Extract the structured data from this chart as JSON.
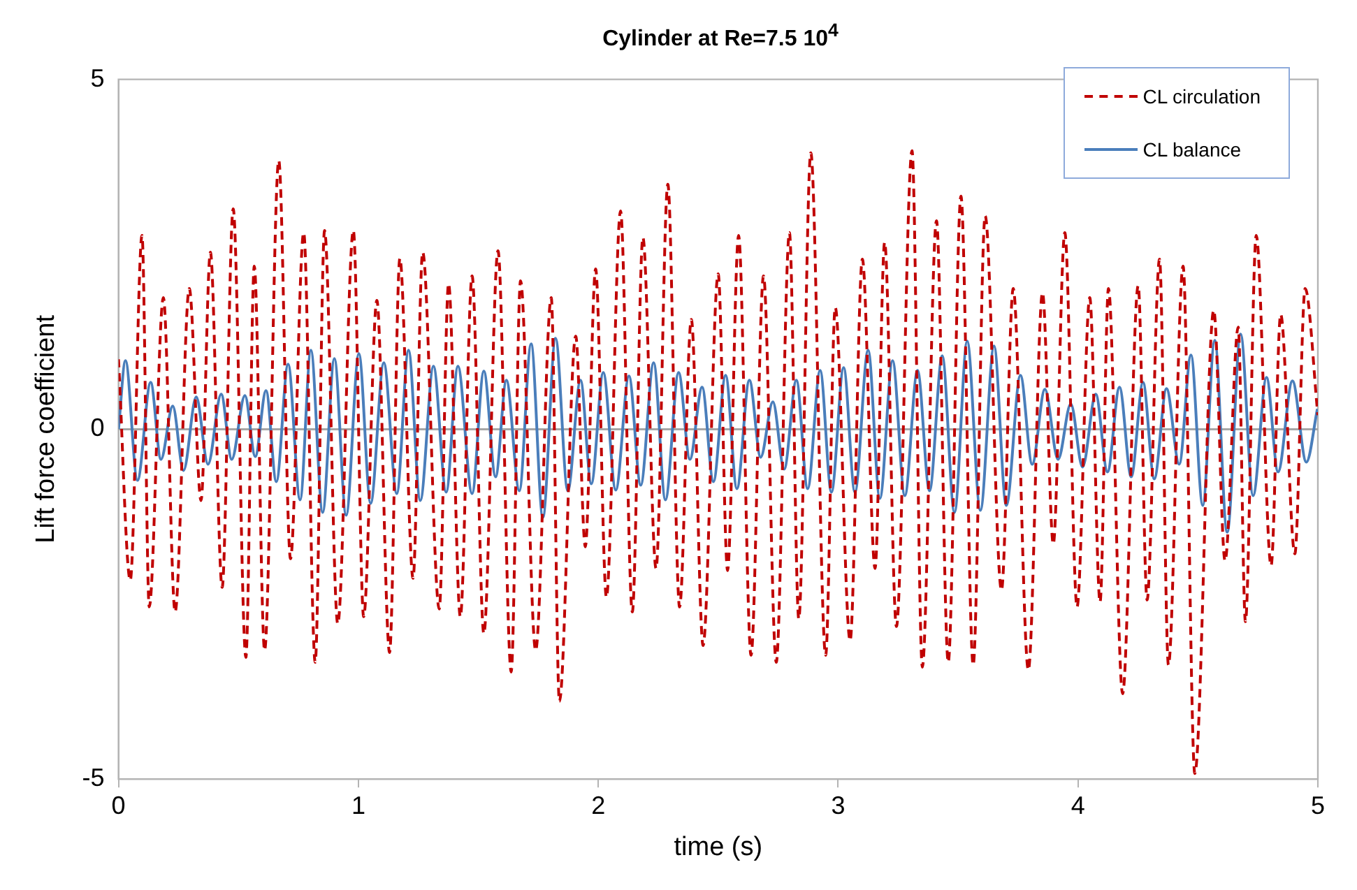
{
  "chart_data": {
    "type": "line",
    "title": "Cylinder at Re=7.5 10$^{4}$",
    "xlabel": "time (s)",
    "ylabel": "Lift force coefficient",
    "xlim": [
      0,
      5
    ],
    "xticks": [
      0,
      1,
      2,
      3,
      4,
      5
    ],
    "ylim": [
      -5,
      5
    ],
    "yticks": [
      -5,
      0,
      5
    ],
    "grid": false,
    "legend": "top right",
    "marker": "none",
    "ref_lines": [
      {
        "axis": "y",
        "value": 0,
        "color": "#a6a6a6"
      }
    ],
    "series": [
      {
        "name": "CL circulation",
        "color": "#c00000",
        "line_style": "dashed",
        "x": [
          0,
          0.049,
          0.098,
          0.128,
          0.187,
          0.236,
          0.295,
          0.344,
          0.383,
          0.432,
          0.478,
          0.531,
          0.566,
          0.609,
          0.668,
          0.717,
          0.772,
          0.82,
          0.859,
          0.914,
          0.979,
          1.022,
          1.077,
          1.13,
          1.173,
          1.228,
          1.268,
          1.337,
          1.376,
          1.425,
          1.474,
          1.523,
          1.582,
          1.637,
          1.676,
          1.739,
          1.804,
          1.838,
          1.906,
          1.946,
          1.989,
          2.034,
          2.093,
          2.142,
          2.186,
          2.241,
          2.29,
          2.339,
          2.388,
          2.437,
          2.5,
          2.539,
          2.585,
          2.637,
          2.689,
          2.742,
          2.797,
          2.836,
          2.886,
          2.948,
          2.988,
          3.05,
          3.101,
          3.154,
          3.194,
          3.243,
          3.308,
          3.351,
          3.41,
          3.459,
          3.512,
          3.563,
          3.613,
          3.681,
          3.73,
          3.793,
          3.852,
          3.897,
          3.945,
          3.996,
          4.049,
          4.092,
          4.127,
          4.186,
          4.251,
          4.288,
          4.34,
          4.377,
          4.438,
          4.487,
          4.566,
          4.613,
          4.668,
          4.698,
          4.743,
          4.805,
          4.845,
          4.904,
          4.947,
          5
        ],
        "values": [
          1.0,
          -2.16,
          2.77,
          -2.54,
          1.88,
          -2.61,
          2.01,
          -1.02,
          2.53,
          -2.26,
          3.15,
          -3.26,
          2.33,
          -3.16,
          3.84,
          -1.85,
          2.81,
          -3.33,
          2.84,
          -2.78,
          2.84,
          -2.68,
          1.84,
          -3.19,
          2.44,
          -2.13,
          2.53,
          -2.57,
          2.08,
          -2.68,
          2.19,
          -2.92,
          2.55,
          -3.47,
          2.12,
          -3.16,
          1.88,
          -3.89,
          1.33,
          -1.68,
          2.29,
          -2.4,
          3.12,
          -2.61,
          2.74,
          -1.99,
          3.5,
          -2.54,
          1.57,
          -3.09,
          2.22,
          -2.02,
          2.77,
          -3.23,
          2.19,
          -3.33,
          2.81,
          -2.71,
          3.95,
          -3.23,
          1.74,
          -3.02,
          2.43,
          -1.99,
          2.67,
          -2.82,
          3.98,
          -3.4,
          2.98,
          -3.33,
          3.33,
          -3.37,
          3.05,
          -2.3,
          2.01,
          -3.44,
          1.95,
          -1.64,
          2.81,
          -2.54,
          1.88,
          -2.47,
          2.01,
          -3.78,
          2.05,
          -2.44,
          2.43,
          -3.37,
          2.33,
          -4.92,
          1.7,
          -1.88,
          1.46,
          -2.75,
          2.77,
          -1.95,
          1.64,
          -1.78,
          2.01,
          0.2
        ]
      },
      {
        "name": "CL balance",
        "color": "#4a7ebb",
        "line_style": "solid",
        "x": [
          0,
          0.029,
          0.079,
          0.134,
          0.177,
          0.226,
          0.271,
          0.324,
          0.373,
          0.428,
          0.472,
          0.527,
          0.57,
          0.615,
          0.658,
          0.707,
          0.757,
          0.802,
          0.851,
          0.9,
          0.949,
          1.002,
          1.051,
          1.106,
          1.16,
          1.209,
          1.258,
          1.313,
          1.366,
          1.415,
          1.474,
          1.523,
          1.572,
          1.617,
          1.671,
          1.72,
          1.769,
          1.822,
          1.873,
          1.926,
          1.971,
          2.021,
          2.073,
          2.128,
          2.177,
          2.231,
          2.28,
          2.335,
          2.382,
          2.433,
          2.48,
          2.531,
          2.578,
          2.63,
          2.677,
          2.728,
          2.775,
          2.826,
          2.873,
          2.925,
          2.972,
          3.023,
          3.07,
          3.125,
          3.174,
          3.227,
          3.278,
          3.331,
          3.381,
          3.434,
          3.485,
          3.538,
          3.593,
          3.65,
          3.701,
          3.76,
          3.809,
          3.862,
          3.917,
          3.97,
          4.019,
          4.074,
          4.123,
          4.173,
          4.222,
          4.271,
          4.318,
          4.369,
          4.422,
          4.471,
          4.52,
          4.57,
          4.622,
          4.678,
          4.73,
          4.786,
          4.834,
          4.894,
          4.952,
          4.998
        ],
        "values": [
          0.0,
          0.98,
          -0.73,
          0.67,
          -0.43,
          0.33,
          -0.59,
          0.46,
          -0.5,
          0.5,
          -0.43,
          0.48,
          -0.39,
          0.55,
          -0.75,
          0.93,
          -1.01,
          1.13,
          -1.19,
          1.01,
          -1.23,
          1.08,
          -1.06,
          0.95,
          -0.92,
          1.13,
          -1.02,
          0.9,
          -0.9,
          0.9,
          -0.92,
          0.83,
          -0.68,
          0.7,
          -0.88,
          1.22,
          -1.26,
          1.3,
          -0.88,
          0.7,
          -0.78,
          0.81,
          -0.87,
          0.76,
          -0.8,
          0.95,
          -1.01,
          0.81,
          -0.43,
          0.6,
          -0.75,
          0.77,
          -0.85,
          0.7,
          -0.4,
          0.39,
          -0.57,
          0.7,
          -0.85,
          0.84,
          -0.9,
          0.88,
          -0.9,
          1.13,
          -0.99,
          0.98,
          -0.95,
          0.84,
          -0.88,
          1.05,
          -1.19,
          1.26,
          -1.16,
          1.19,
          -1.09,
          0.77,
          -0.5,
          0.57,
          -0.43,
          0.36,
          -0.54,
          0.5,
          -0.61,
          0.6,
          -0.68,
          0.67,
          -0.71,
          0.58,
          -0.5,
          1.06,
          -1.09,
          1.27,
          -1.47,
          1.36,
          -0.95,
          0.74,
          -0.61,
          0.69,
          -0.47,
          0.29
        ]
      }
    ]
  }
}
